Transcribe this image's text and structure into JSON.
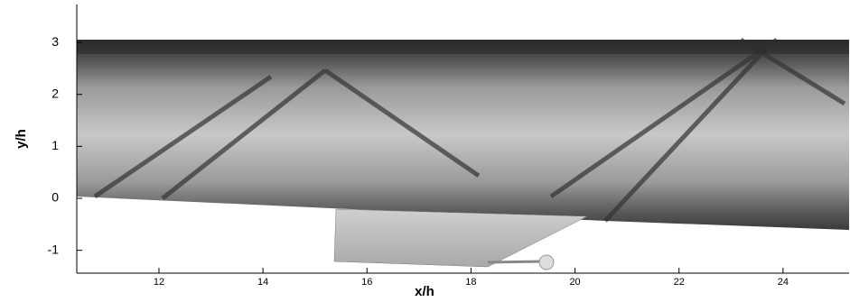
{
  "chart_data": {
    "type": "contour",
    "xlabel": "x/h",
    "ylabel": "y/h",
    "xlim": [
      10.42,
      25.27
    ],
    "ylim": [
      -1.44,
      3.73
    ],
    "xticks": [
      12,
      14,
      16,
      18,
      20,
      22,
      24
    ],
    "yticks": [
      -1,
      0,
      1,
      2,
      3
    ]
  }
}
